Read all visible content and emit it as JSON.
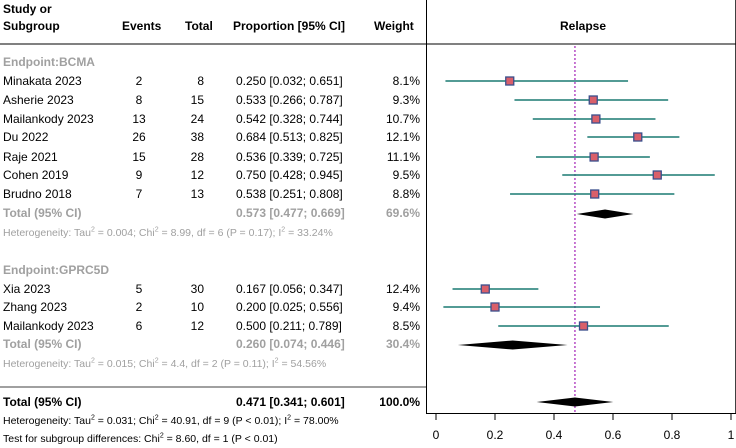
{
  "headers": {
    "study_line1": "Study or",
    "study_line2": "Subgroup",
    "events": "Events",
    "total": "Total",
    "proportion": "Proportion [95% CI]",
    "weight": "Weight",
    "plot_title": "Relapse"
  },
  "subgroups": [
    {
      "label": "Endpoint:BCMA",
      "studies": [
        {
          "study": "Minakata  2023",
          "events": "2",
          "total": "8",
          "ci": "0.250 [0.032; 0.651]",
          "weight": "8.1%"
        },
        {
          "study": "Asherie 2023",
          "events": "8",
          "total": "15",
          "ci": "0.533 [0.266; 0.787]",
          "weight": "9.3%"
        },
        {
          "study": "Mailankody  2023",
          "events": "13",
          "total": "24",
          "ci": "0.542 [0.328; 0.744]",
          "weight": "10.7%"
        },
        {
          "study": "Du  2022",
          "events": "26",
          "total": "38",
          "ci": "0.684 [0.513; 0.825]",
          "weight": "12.1%"
        },
        {
          "study": "Raje 2021",
          "events": "15",
          "total": "28",
          "ci": "0.536 [0.339; 0.725]",
          "weight": "11.1%"
        },
        {
          "study": "Cohen 2019",
          "events": "9",
          "total": "12",
          "ci": "0.750 [0.428; 0.945]",
          "weight": "9.5%"
        },
        {
          "study": "Brudno 2018",
          "events": "7",
          "total": "13",
          "ci": "0.538 [0.251; 0.808]",
          "weight": "8.8%"
        }
      ],
      "total_label": "Total (95% CI)",
      "total_ci": "0.573 [0.477; 0.669]",
      "total_weight": "69.6%",
      "het": {
        "a": "Heterogeneity: Tau",
        "b": " = 0.004; Chi",
        "c": " = 8.99, df = 6 (P = 0.17); I",
        "d": " = 33.24%"
      }
    },
    {
      "label": "Endpoint:GPRC5D",
      "studies": [
        {
          "study": "Xia 2023",
          "events": "5",
          "total": "30",
          "ci": "0.167 [0.056; 0.347]",
          "weight": "12.4%"
        },
        {
          "study": "Zhang 2023",
          "events": "2",
          "total": "10",
          "ci": "0.200 [0.025; 0.556]",
          "weight": "9.4%"
        },
        {
          "study": "Mailankody  2023",
          "events": "6",
          "total": "12",
          "ci": "0.500 [0.211; 0.789]",
          "weight": "8.5%"
        }
      ],
      "total_label": "Total (95% CI)",
      "total_ci": "0.260 [0.074; 0.446]",
      "total_weight": "30.4%",
      "het": {
        "a": "Heterogeneity: Tau",
        "b": " = 0.015; Chi",
        "c": " = 4.4, df = 2 (P = 0.11); I",
        "d": " = 54.56%"
      }
    }
  ],
  "overall": {
    "label": "Total (95% CI)",
    "ci": "0.471 [0.341; 0.601]",
    "weight": "100.0%",
    "het": {
      "a": "Heterogeneity: Tau",
      "b": " = 0.031; Chi",
      "c": " = 40.91, df = 9 (P < 0.01); I",
      "d": " = 78.00%"
    },
    "subgroup_test": {
      "a": "Test for subgroup differences: Chi",
      "b": " = 8.60, df = 1 (P < 0.01)"
    }
  },
  "chart_data": {
    "type": "forest",
    "title": "Relapse",
    "xlim": [
      0,
      1
    ],
    "x_ticks": [
      0,
      0.2,
      0.4,
      0.6,
      0.8,
      1
    ],
    "x_tick_labels": [
      "0",
      "0.2",
      "0.4",
      "0.6",
      "0.8",
      "1"
    ],
    "reference_line": 0.471,
    "studies": [
      {
        "name": "Minakata  2023",
        "group": "BCMA",
        "est": 0.25,
        "lo": 0.032,
        "hi": 0.651
      },
      {
        "name": "Asherie 2023",
        "group": "BCMA",
        "est": 0.533,
        "lo": 0.266,
        "hi": 0.787
      },
      {
        "name": "Mailankody  2023",
        "group": "BCMA",
        "est": 0.542,
        "lo": 0.328,
        "hi": 0.744
      },
      {
        "name": "Du  2022",
        "group": "BCMA",
        "est": 0.684,
        "lo": 0.513,
        "hi": 0.825
      },
      {
        "name": "Raje 2021",
        "group": "BCMA",
        "est": 0.536,
        "lo": 0.339,
        "hi": 0.725
      },
      {
        "name": "Cohen 2019",
        "group": "BCMA",
        "est": 0.75,
        "lo": 0.428,
        "hi": 0.945
      },
      {
        "name": "Brudno 2018",
        "group": "BCMA",
        "est": 0.538,
        "lo": 0.251,
        "hi": 0.808
      },
      {
        "name": "Xia 2023",
        "group": "GPRC5D",
        "est": 0.167,
        "lo": 0.056,
        "hi": 0.347
      },
      {
        "name": "Zhang 2023",
        "group": "GPRC5D",
        "est": 0.2,
        "lo": 0.025,
        "hi": 0.556
      },
      {
        "name": "Mailankody  2023",
        "group": "GPRC5D",
        "est": 0.5,
        "lo": 0.211,
        "hi": 0.789
      }
    ],
    "pooled": [
      {
        "name": "BCMA total",
        "est": 0.573,
        "lo": 0.477,
        "hi": 0.669
      },
      {
        "name": "GPRC5D total",
        "est": 0.26,
        "lo": 0.074,
        "hi": 0.446
      },
      {
        "name": "Overall",
        "est": 0.471,
        "lo": 0.341,
        "hi": 0.601
      }
    ],
    "colors": {
      "ci_line": "#1a7a72",
      "box": "#d95f6a",
      "box_edge": "#3a4f8c",
      "ref_line": "#b040c0",
      "diamond": "#000000"
    }
  }
}
